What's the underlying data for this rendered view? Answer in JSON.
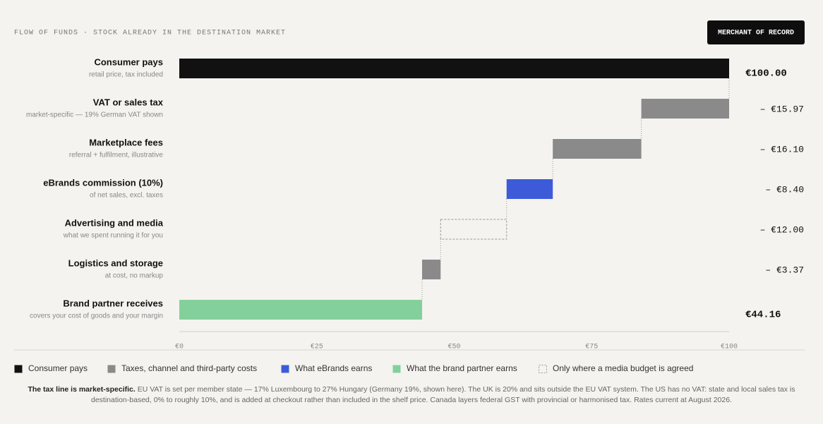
{
  "chart_data": {
    "type": "waterfall",
    "orientation": "horizontal",
    "title": "FLOW OF FUNDS · STOCK ALREADY IN THE DESTINATION MARKET",
    "badge": "MERCHANT OF RECORD",
    "categories": [
      "Consumer pays",
      "VAT or sales tax",
      "Marketplace fees",
      "eBrands commission (10%)",
      "Advertising and media",
      "Logistics and storage",
      "Brand partner receives"
    ],
    "subtitles": [
      "retail price, tax included",
      "market-specific — 19% German VAT shown",
      "referral + fulfilment, illustrative",
      "of net sales, excl. taxes",
      "what we spent running it for you",
      "at cost, no markup",
      "covers your cost of goods and your margin"
    ],
    "measure": [
      "absolute",
      "relative",
      "relative",
      "relative",
      "relative",
      "relative",
      "absolute"
    ],
    "values": [
      100,
      -15.97,
      -16.1,
      -8.4,
      -12,
      -3.37,
      44.16
    ],
    "value_labels": [
      "€100.00",
      "– €15.97",
      "– €16.10",
      "– €8.40",
      "– €12.00",
      "– €3.37",
      "€44.16"
    ],
    "bar_legend": [
      0,
      1,
      1,
      2,
      4,
      1,
      3
    ],
    "legend": [
      {
        "name": "Consumer pays",
        "color": "#111111",
        "style": "solid"
      },
      {
        "name": "Taxes, channel and third-party costs",
        "color": "#8a8a8a",
        "style": "solid"
      },
      {
        "name": "What eBrands earns",
        "color": "#3d5bd9",
        "style": "solid"
      },
      {
        "name": "What the brand partner earns",
        "color": "#84d09c",
        "style": "solid"
      },
      {
        "name": "Only where a media budget is agreed",
        "color": "#999999",
        "style": "dashed"
      }
    ],
    "xlim": [
      0,
      100
    ],
    "xticks": [
      {
        "value": 0,
        "label": "€0"
      },
      {
        "value": 25,
        "label": "€25"
      },
      {
        "value": 50,
        "label": "€50"
      },
      {
        "value": 75,
        "label": "€75"
      },
      {
        "value": 100,
        "label": "€100"
      }
    ]
  },
  "footnote": {
    "lead": "The tax line is market-specific.",
    "text": " EU VAT is set per member state — 17% Luxembourg to 27% Hungary (Germany 19%, shown here). The UK is 20% and sits outside the EU VAT system. The US has no VAT: state and local sales tax is destination-based, 0% to roughly 10%, and is added at checkout rather than included in the shelf price. Canada layers federal GST with provincial or harmonised tax. Rates current at August 2026."
  }
}
